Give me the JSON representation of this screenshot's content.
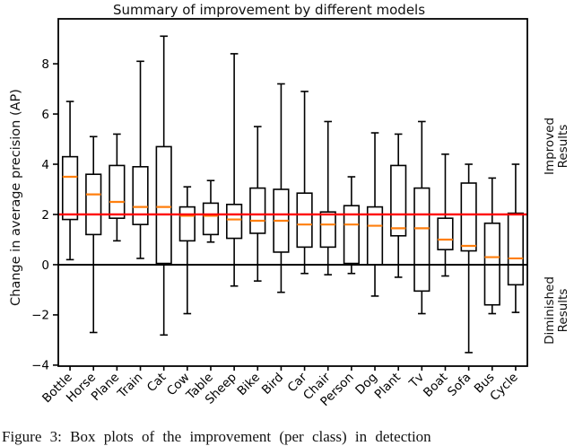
{
  "figure": {
    "title": "Summary of improvement by different models",
    "ylabel": "Change in average precision (AP)",
    "right_labels": {
      "improved_line1": "Improved",
      "improved_line2": "Results",
      "diminished_line1": "Diminished",
      "diminished_line2": "Results"
    },
    "caption": "Figure 3: Box plots of the improvement (per class) in detection"
  },
  "chart_data": {
    "type": "boxplot",
    "title": "Summary of improvement by different models",
    "xlabel": "",
    "ylabel": "Change in average precision (AP)",
    "categories": [
      "Bottle",
      "Horse",
      "Plane",
      "Train",
      "Cat",
      "Cow",
      "Table",
      "Sheep",
      "Bike",
      "Bird",
      "Car",
      "Chair",
      "Person",
      "Dog",
      "Plant",
      "Tv",
      "Boat",
      "Sofa",
      "Bus",
      "Cycle"
    ],
    "boxes": [
      {
        "category": "Bottle",
        "whisker_low": 0.2,
        "q1": 1.8,
        "median": 3.5,
        "q3": 4.3,
        "whisker_high": 6.5
      },
      {
        "category": "Horse",
        "whisker_low": -2.7,
        "q1": 1.2,
        "median": 2.8,
        "q3": 3.6,
        "whisker_high": 5.1
      },
      {
        "category": "Plane",
        "whisker_low": 0.95,
        "q1": 1.85,
        "median": 2.5,
        "q3": 3.95,
        "whisker_high": 5.2
      },
      {
        "category": "Train",
        "whisker_low": 0.25,
        "q1": 1.6,
        "median": 2.3,
        "q3": 3.9,
        "whisker_high": 8.1
      },
      {
        "category": "Cat",
        "whisker_low": -2.8,
        "q1": 0.05,
        "median": 2.3,
        "q3": 4.7,
        "whisker_high": 9.1
      },
      {
        "category": "Cow",
        "whisker_low": -1.95,
        "q1": 0.95,
        "median": 1.95,
        "q3": 2.3,
        "whisker_high": 3.1
      },
      {
        "category": "Table",
        "whisker_low": 0.9,
        "q1": 1.2,
        "median": 1.95,
        "q3": 2.45,
        "whisker_high": 3.35
      },
      {
        "category": "Sheep",
        "whisker_low": -0.85,
        "q1": 1.05,
        "median": 1.8,
        "q3": 2.4,
        "whisker_high": 8.4
      },
      {
        "category": "Bike",
        "whisker_low": -0.65,
        "q1": 1.25,
        "median": 1.75,
        "q3": 3.05,
        "whisker_high": 5.5
      },
      {
        "category": "Bird",
        "whisker_low": -1.1,
        "q1": 0.5,
        "median": 1.75,
        "q3": 3.0,
        "whisker_high": 7.2
      },
      {
        "category": "Car",
        "whisker_low": -0.35,
        "q1": 0.7,
        "median": 1.6,
        "q3": 2.85,
        "whisker_high": 6.9
      },
      {
        "category": "Chair",
        "whisker_low": -0.4,
        "q1": 0.7,
        "median": 1.6,
        "q3": 2.1,
        "whisker_high": 5.7
      },
      {
        "category": "Person",
        "whisker_low": -0.35,
        "q1": 0.05,
        "median": 1.6,
        "q3": 2.35,
        "whisker_high": 3.5
      },
      {
        "category": "Dog",
        "whisker_low": -1.25,
        "q1": 0.0,
        "median": 1.55,
        "q3": 2.3,
        "whisker_high": 5.25
      },
      {
        "category": "Plant",
        "whisker_low": -0.5,
        "q1": 1.15,
        "median": 1.45,
        "q3": 3.95,
        "whisker_high": 5.2
      },
      {
        "category": "Tv",
        "whisker_low": -1.95,
        "q1": -1.05,
        "median": 1.45,
        "q3": 3.05,
        "whisker_high": 5.7
      },
      {
        "category": "Boat",
        "whisker_low": -0.45,
        "q1": 0.6,
        "median": 1.0,
        "q3": 1.85,
        "whisker_high": 4.4
      },
      {
        "category": "Sofa",
        "whisker_low": -3.5,
        "q1": 0.55,
        "median": 0.75,
        "q3": 3.25,
        "whisker_high": 4.0
      },
      {
        "category": "Bus",
        "whisker_low": -1.95,
        "q1": -1.6,
        "median": 0.3,
        "q3": 1.65,
        "whisker_high": 3.45
      },
      {
        "category": "Cycle",
        "whisker_low": -1.9,
        "q1": -0.8,
        "median": 0.25,
        "q3": 2.05,
        "whisker_high": 4.0
      }
    ],
    "yticks": [
      8,
      6,
      4,
      2,
      0,
      -2,
      -4
    ],
    "ylim": [
      -4.04,
      9.79
    ],
    "reference_lines": [
      {
        "y": 2,
        "color": "#ff0000"
      },
      {
        "y": 0,
        "color": "#000000"
      }
    ],
    "right_annotations": [
      {
        "text": "Improved Results",
        "y_center": 4.7
      },
      {
        "text": "Diminished Results",
        "y_center": -1.8
      }
    ],
    "colors": {
      "box_stroke": "#000000",
      "median": "#ff7f0e",
      "improve_line": "#ff0000",
      "zero_line": "#000000"
    },
    "grid": false,
    "legend": "none"
  }
}
